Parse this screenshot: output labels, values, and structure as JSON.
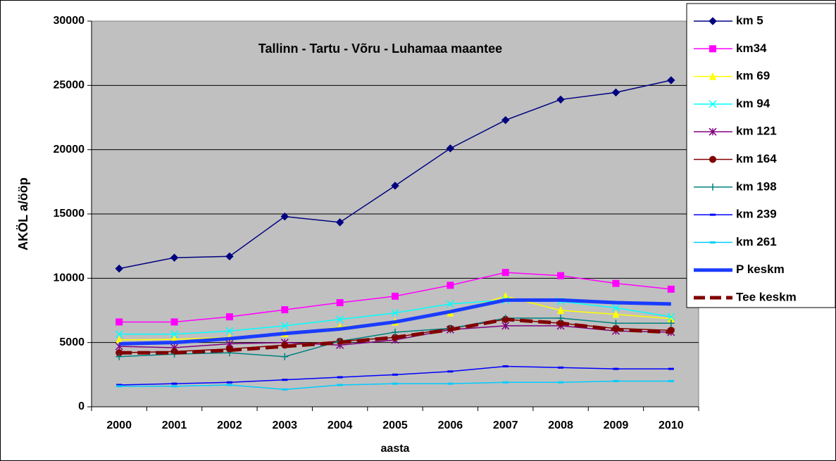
{
  "chart_data": {
    "type": "line",
    "title": "Tallinn - Tartu - Võru - Luhamaa maantee",
    "y_label": "AKÖL a/ööp",
    "x_label": "aasta",
    "categories": [
      "2000",
      "2001",
      "2002",
      "2003",
      "2004",
      "2005",
      "2006",
      "2007",
      "2008",
      "2009",
      "2010"
    ],
    "ylim": [
      0,
      30000
    ],
    "yticks": [
      0,
      5000,
      10000,
      15000,
      20000,
      25000,
      30000
    ],
    "grid": true,
    "legend": "right",
    "series": [
      {
        "name": "km 5",
        "color": "#000080",
        "marker": "diamond",
        "values": [
          10750,
          11600,
          11700,
          14800,
          14350,
          17200,
          20100,
          22300,
          23900,
          24450,
          25400
        ]
      },
      {
        "name": "km34",
        "color": "#ff00ff",
        "marker": "square",
        "values": [
          6600,
          6600,
          7000,
          7550,
          8100,
          8600,
          9450,
          10450,
          10200,
          9600,
          9150
        ]
      },
      {
        "name": "km 69",
        "color": "#ffff00",
        "marker": "triangle",
        "values": [
          5200,
          5250,
          5400,
          5700,
          6200,
          6600,
          7300,
          8600,
          7500,
          7200,
          6850
        ]
      },
      {
        "name": "km 94",
        "color": "#00ffff",
        "marker": "x",
        "values": [
          5650,
          5650,
          5900,
          6300,
          6800,
          7300,
          8000,
          8300,
          8200,
          7700,
          7000
        ]
      },
      {
        "name": "km 121",
        "color": "#800080",
        "marker": "star",
        "values": [
          4700,
          4600,
          4900,
          5000,
          4800,
          5200,
          6000,
          6300,
          6300,
          5900,
          5800
        ]
      },
      {
        "name": "km 164",
        "color": "#800000",
        "marker": "circle",
        "values": [
          4200,
          4300,
          4500,
          4800,
          5100,
          5400,
          6100,
          6800,
          6500,
          6100,
          5950
        ]
      },
      {
        "name": "km 198",
        "color": "#008080",
        "marker": "plus",
        "values": [
          3900,
          4100,
          4200,
          3900,
          5100,
          5800,
          6100,
          6900,
          6900,
          6500,
          6500
        ]
      },
      {
        "name": "km 239",
        "color": "#0000ff",
        "marker": "dash",
        "values": [
          1700,
          1800,
          1900,
          2100,
          2300,
          2500,
          2750,
          3150,
          3050,
          2950,
          2950
        ]
      },
      {
        "name": "km 261",
        "color": "#00ccff",
        "marker": "dash",
        "values": [
          1600,
          1600,
          1700,
          1350,
          1700,
          1800,
          1800,
          1900,
          1900,
          2000,
          2000
        ]
      },
      {
        "name": "P keskm",
        "color": "#1a3cff",
        "marker": "none",
        "width": 5,
        "values": [
          4900,
          5000,
          5300,
          5700,
          6050,
          6600,
          7400,
          8300,
          8300,
          8100,
          8000
        ]
      },
      {
        "name": "Tee keskm",
        "color": "#800000",
        "marker": "none",
        "width": 5,
        "dash": true,
        "values": [
          4200,
          4200,
          4400,
          4700,
          5000,
          5400,
          6000,
          6800,
          6500,
          6000,
          5800
        ]
      }
    ]
  }
}
